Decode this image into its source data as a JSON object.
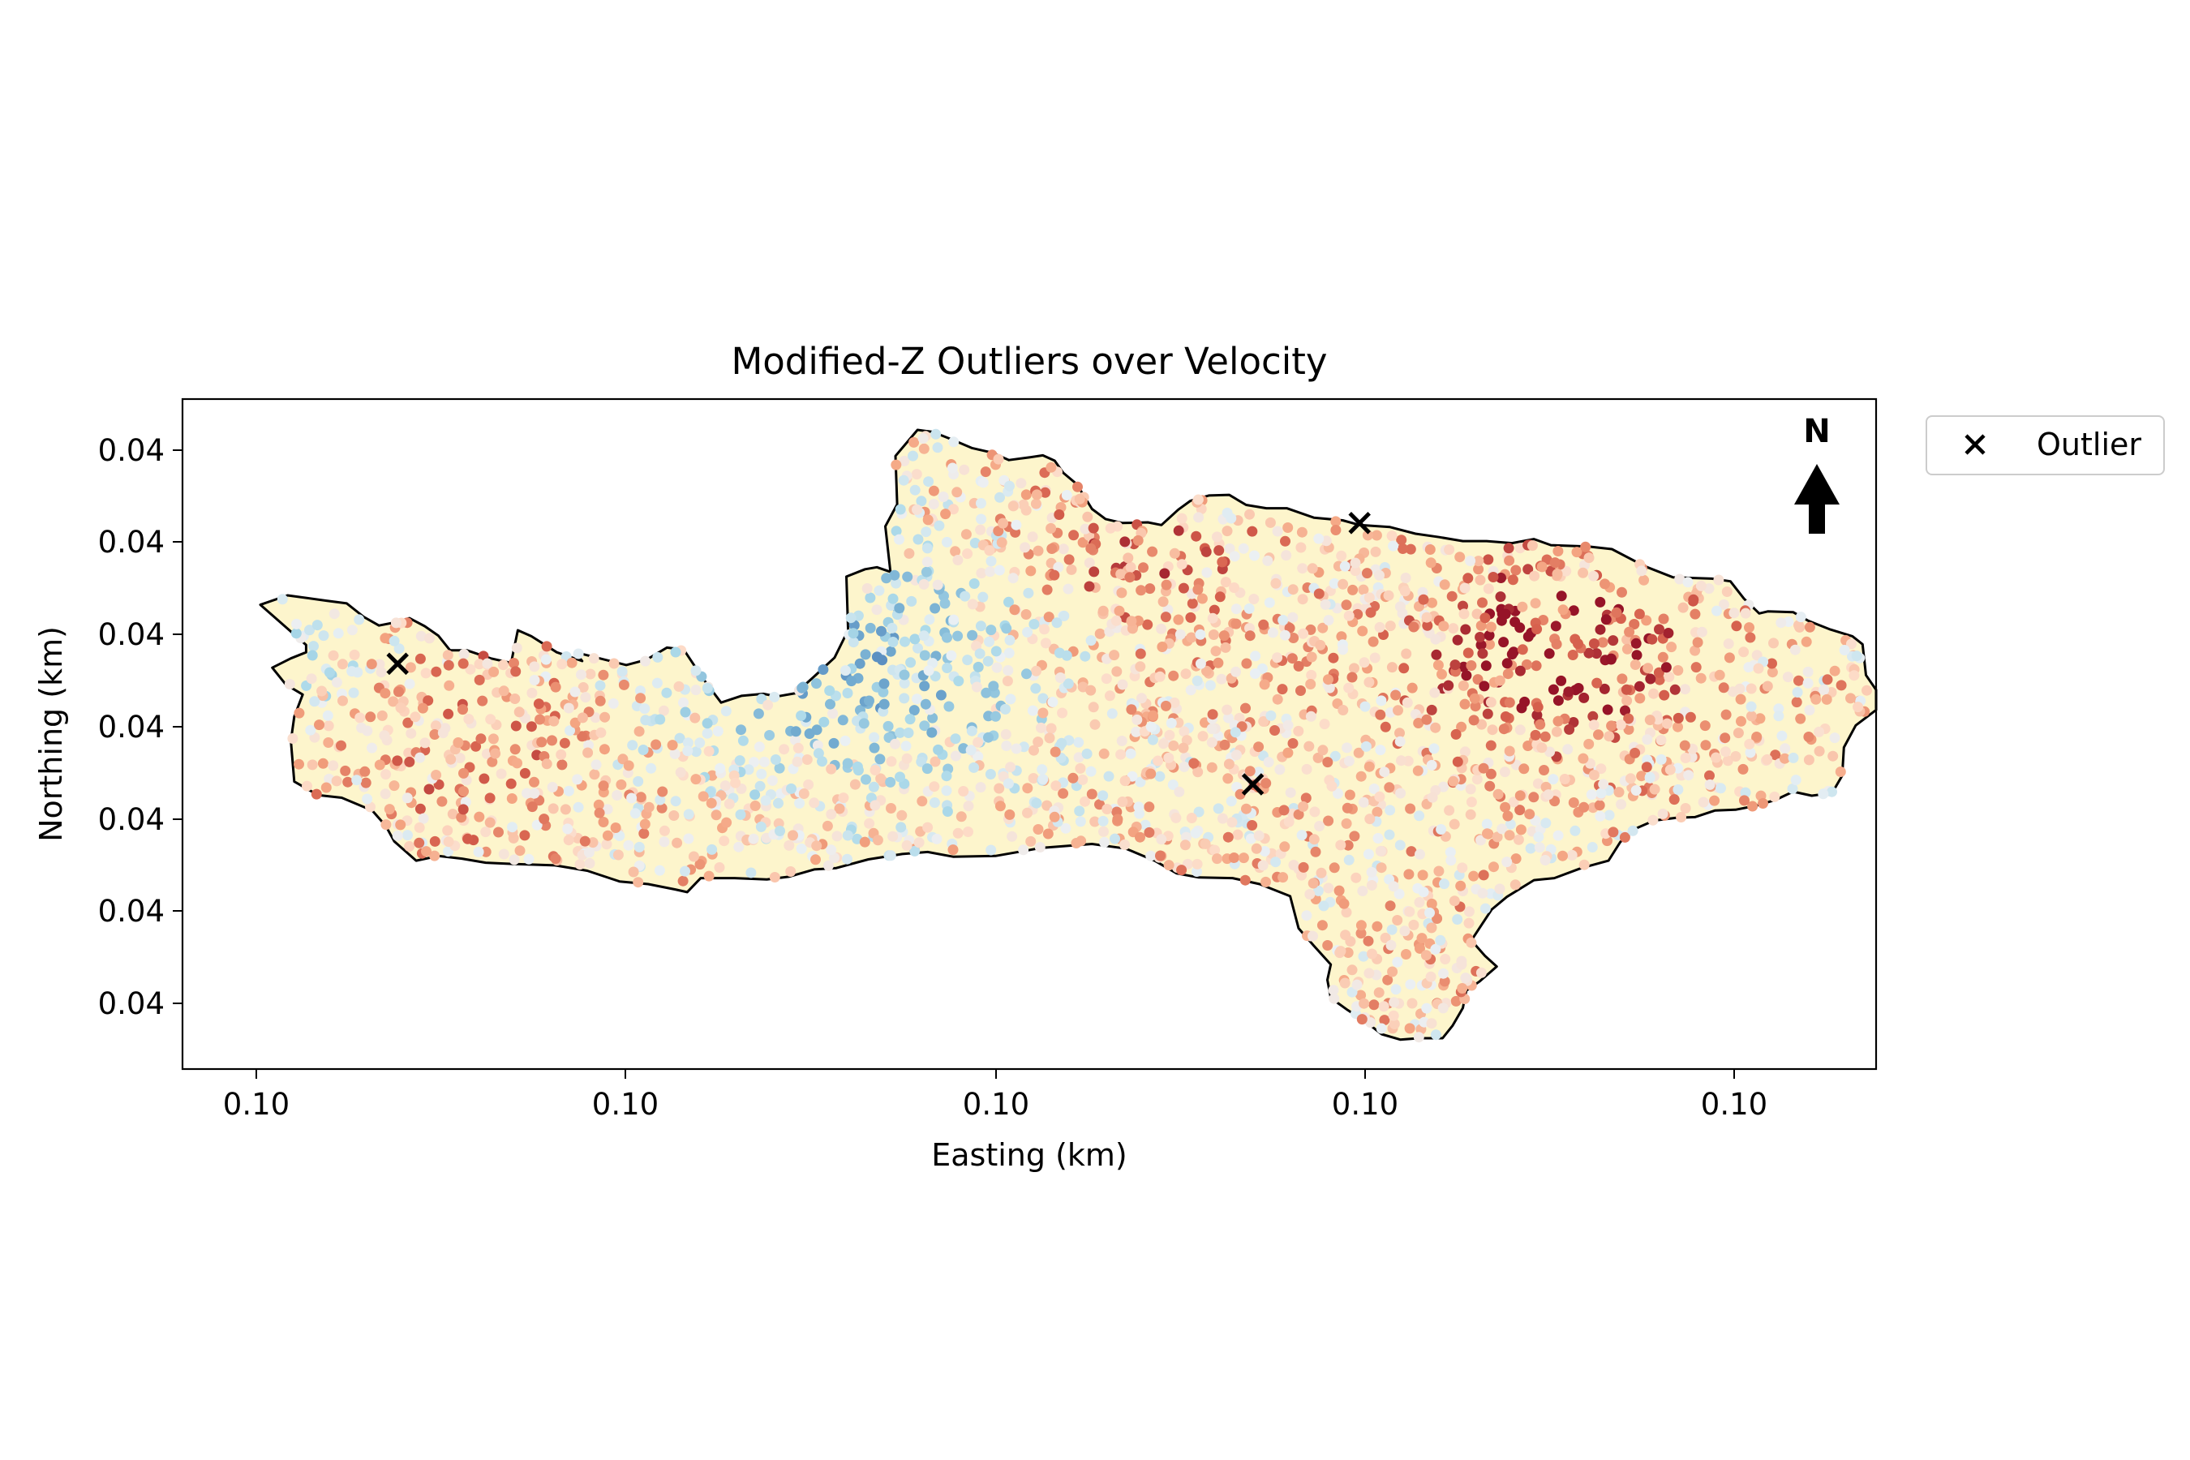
{
  "chart_data": {
    "type": "scatter",
    "title": "Modified-Z Outliers over Velocity",
    "xlabel": "Easting (km)",
    "ylabel": "Northing (km)",
    "x_tick_labels": [
      "0.10",
      "0.10",
      "0.10",
      "0.10",
      "0.10"
    ],
    "y_tick_labels": [
      "0.04",
      "0.04",
      "0.04",
      "0.04",
      "0.04",
      "0.04",
      "0.04"
    ],
    "grid": false,
    "legend": {
      "placement": "outside-top-right",
      "entries": [
        "Outlier"
      ]
    },
    "north_arrow_label": "N",
    "colormap": "RdYlBu_r",
    "region_fill": "#fdf5cc",
    "colors": {
      "outlier_marker": "#000000",
      "boundary": "#000000"
    },
    "series": [
      {
        "name": "Outlier",
        "marker": "x",
        "points": [
          {
            "x": 0.127,
            "y": 0.605
          },
          {
            "x": 0.632,
            "y": 0.425
          },
          {
            "x": 0.695,
            "y": 0.815
          }
        ]
      }
    ]
  }
}
